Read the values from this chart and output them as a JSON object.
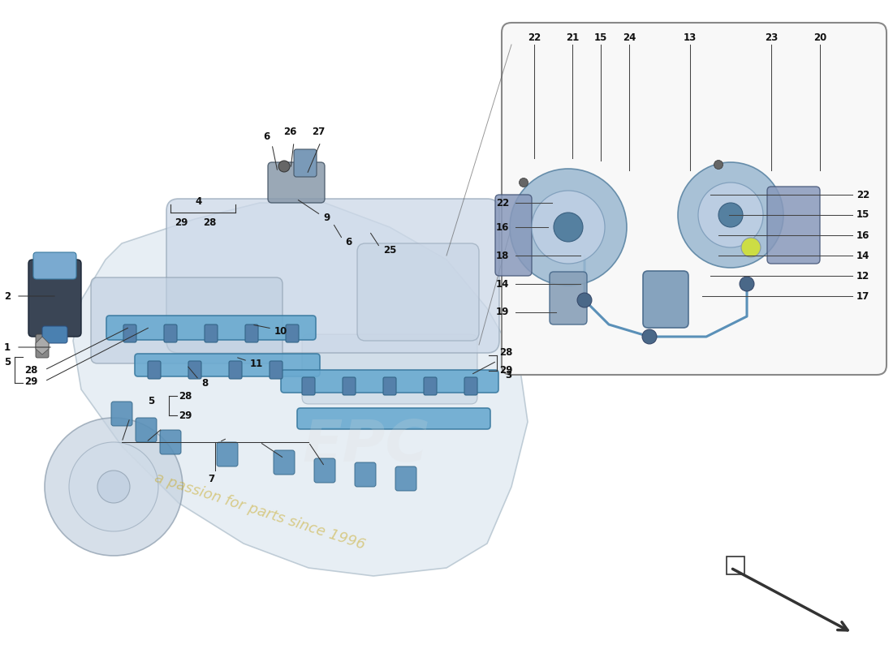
{
  "background_color": "#ffffff",
  "engine_body_color": "#dde8f0",
  "engine_outline": "#aabbc8",
  "plenum_color": "#ccd8e8",
  "rail_color": "#6aaad0",
  "rail_outline": "#3a7aa0",
  "injector_color": "#5580aa",
  "cap_color": "#5a90b8",
  "inset_bg": "#f8f8f8",
  "inset_border": "#888888",
  "label_color": "#111111",
  "line_color": "#333333",
  "watermark_text": "a passion for parts since 1996",
  "epc_watermark": "EPC",
  "font_size": 8.5
}
